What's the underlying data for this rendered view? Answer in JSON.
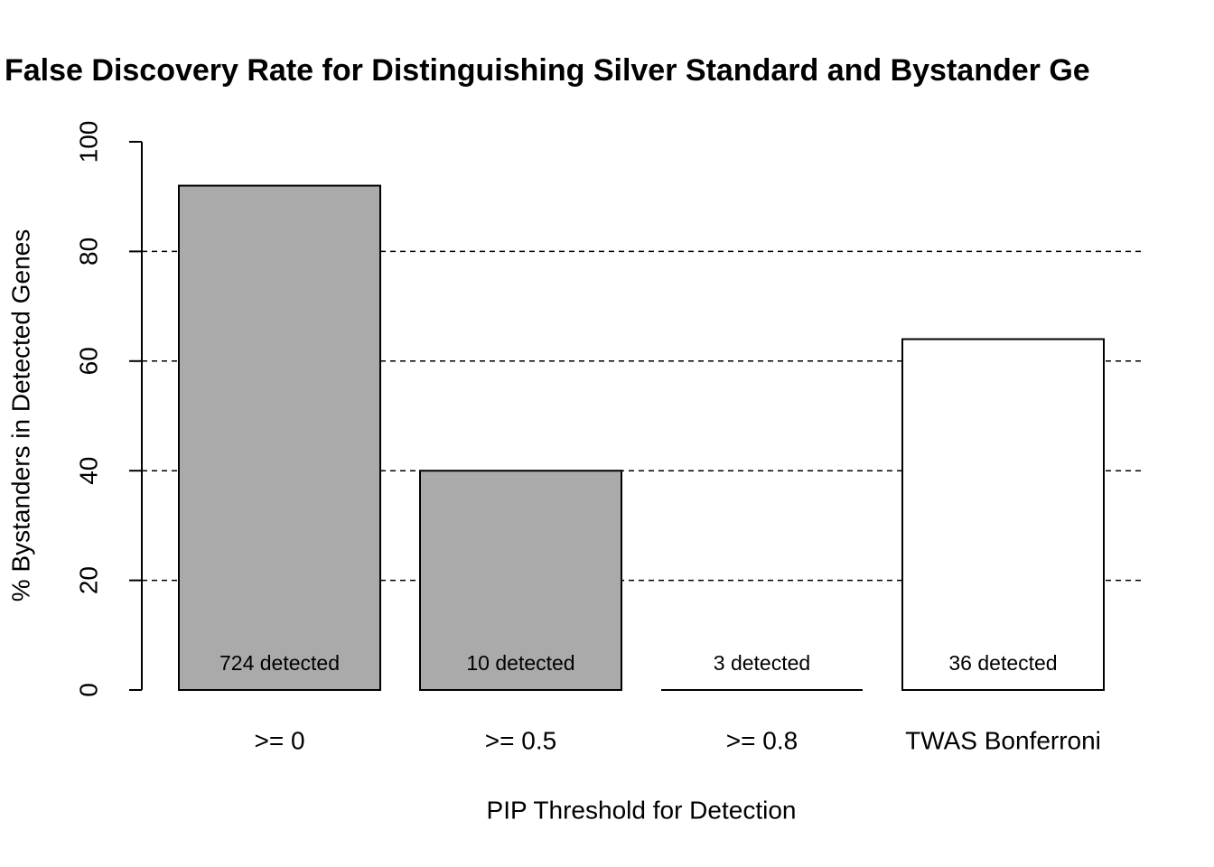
{
  "chart_data": {
    "type": "bar",
    "title": "False Discovery Rate for Distinguishing Silver Standard and Bystander Ge",
    "x_label": "PIP Threshold for Detection",
    "y_label": "% Bystanders in Detected Genes",
    "categories": [
      ">= 0",
      ">= 0.5",
      ">= 0.8",
      "TWAS Bonferroni"
    ],
    "values": [
      92,
      40,
      0,
      64
    ],
    "colors": [
      "#aaaaaa",
      "#aaaaaa",
      "#aaaaaa",
      "#ffffff"
    ],
    "bar_labels": [
      "724 detected",
      "10 detected",
      "3 detected",
      "36 detected"
    ],
    "ylim": [
      0,
      100
    ],
    "yticks": [
      0,
      20,
      40,
      60,
      80,
      100
    ],
    "grid": true
  }
}
